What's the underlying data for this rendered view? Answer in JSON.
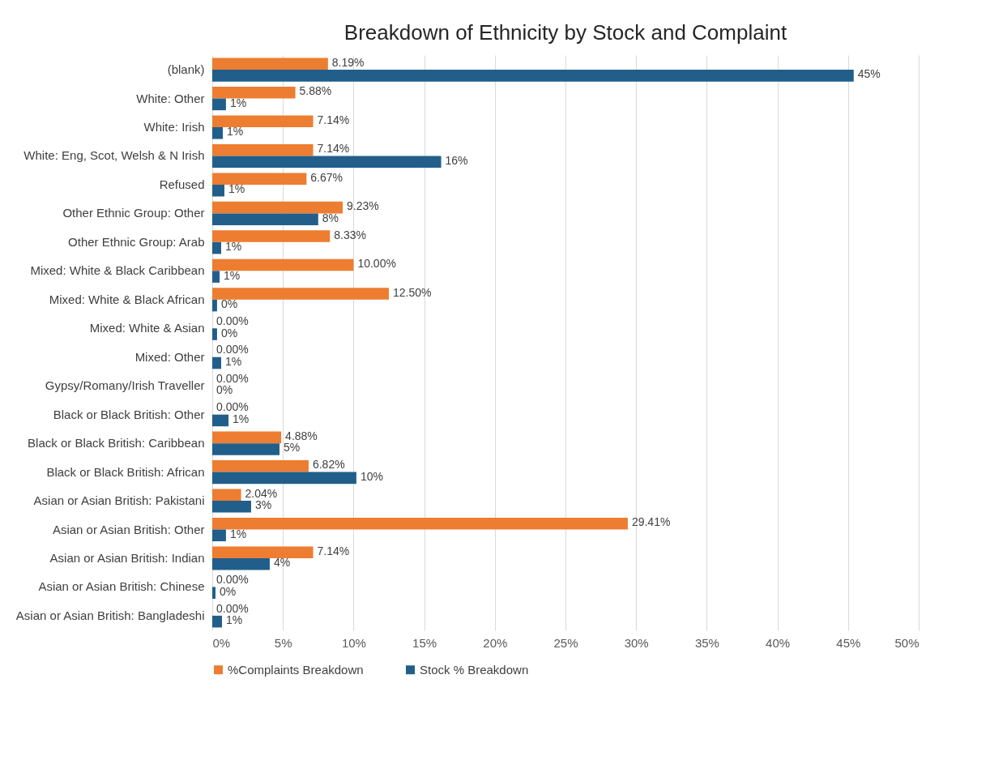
{
  "chart_data": {
    "type": "bar",
    "orientation": "horizontal",
    "title": "Breakdown of Ethnicity by Stock and Complaint",
    "categories": [
      "(blank)",
      "White: Other",
      "White: Irish",
      "White: Eng, Scot, Welsh & N Irish",
      "Refused",
      "Other Ethnic Group: Other",
      "Other Ethnic Group: Arab",
      "Mixed: White & Black Caribbean",
      "Mixed: White & Black African",
      "Mixed: White & Asian",
      "Mixed: Other",
      "Gypsy/Romany/Irish Traveller",
      "Black or Black British: Other",
      "Black or Black British: Caribbean",
      "Black or Black British: African",
      "Asian or Asian British: Pakistani",
      "Asian or Asian British: Other",
      "Asian or Asian British: Indian",
      "Asian or Asian British: Chinese",
      "Asian or Asian British: Bangladeshi"
    ],
    "series": [
      {
        "name": "%Complaints Breakdown",
        "color": "#ed7d31",
        "values": [
          8.19,
          5.88,
          7.14,
          7.14,
          6.67,
          9.23,
          8.33,
          10.0,
          12.5,
          0,
          0,
          0,
          0,
          4.88,
          6.82,
          2.04,
          29.41,
          7.14,
          0,
          0
        ],
        "value_labels": [
          "8.19%",
          "5.88%",
          "7.14%",
          "7.14%",
          "6.67%",
          "9.23%",
          "8.33%",
          "10.00%",
          "12.50%",
          "0.00%",
          "0.00%",
          "0.00%",
          "0.00%",
          "4.88%",
          "6.82%",
          "2.04%",
          "29.41%",
          "7.14%",
          "0.00%",
          "0.00%"
        ]
      },
      {
        "name": "Stock % Breakdown",
        "color": "#215f8a",
        "values": [
          45.4,
          0.97,
          0.75,
          16.2,
          0.86,
          7.5,
          0.63,
          0.52,
          0.34,
          0.34,
          0.63,
          0,
          1.15,
          4.76,
          10.2,
          2.75,
          0.97,
          4.07,
          0.23,
          0.69
        ],
        "value_labels": [
          "45%",
          "1%",
          "1%",
          "16%",
          "1%",
          "8%",
          "1%",
          "1%",
          "0%",
          "0%",
          "1%",
          "0%",
          "1%",
          "5%",
          "10%",
          "3%",
          "1%",
          "4%",
          "0%",
          "1%"
        ]
      }
    ],
    "xlim": [
      0,
      50
    ],
    "xticks": [
      {
        "value": 0,
        "label": "0%"
      },
      {
        "value": 5,
        "label": "5%"
      },
      {
        "value": 10,
        "label": "10%"
      },
      {
        "value": 15,
        "label": "15%"
      },
      {
        "value": 20,
        "label": "20%"
      },
      {
        "value": 25,
        "label": "25%"
      },
      {
        "value": 30,
        "label": "30%"
      },
      {
        "value": 35,
        "label": "35%"
      },
      {
        "value": 40,
        "label": "40%"
      },
      {
        "value": 45,
        "label": "45%"
      },
      {
        "value": 50,
        "label": "50%"
      }
    ],
    "grid": "x",
    "legend": "bottom"
  }
}
